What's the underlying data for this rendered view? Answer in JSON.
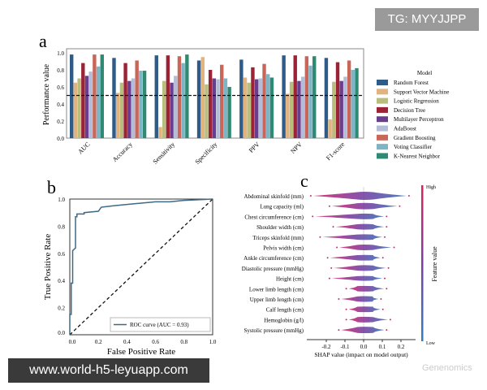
{
  "watermark_top": "TG: MYYJJPP",
  "watermark_bottom": "www.world-h5-leyuapp.com",
  "watermark_faint": "Genenomics",
  "chart_data": [
    {
      "panel": "a",
      "type": "bar",
      "ylabel": "Performance value",
      "ylim": [
        0,
        1.0
      ],
      "yticks": [
        "0.0",
        "0.2",
        "0.4",
        "0.6",
        "0.8",
        "1.0"
      ],
      "reference_line": 0.5,
      "legend_title": "Model",
      "legend_position": "right",
      "categories": [
        "AUC",
        "Accuracy",
        "Sensitivity",
        "Specificity",
        "PPV",
        "NPV",
        "F1-score"
      ],
      "series": [
        {
          "name": "Random Forest",
          "color": "#2e5b87",
          "values": [
            0.98,
            0.94,
            0.97,
            0.91,
            0.92,
            0.97,
            0.94
          ]
        },
        {
          "name": "Support Vector Machine",
          "color": "#e2b27f",
          "values": [
            0.65,
            0.53,
            0.13,
            0.95,
            0.71,
            0.52,
            0.22
          ]
        },
        {
          "name": "Logistic Regression",
          "color": "#b9be7c",
          "values": [
            0.7,
            0.65,
            0.67,
            0.63,
            0.65,
            0.66,
            0.66
          ]
        },
        {
          "name": "Decision Tree",
          "color": "#9b2335",
          "values": [
            0.88,
            0.88,
            0.97,
            0.8,
            0.83,
            0.97,
            0.89
          ]
        },
        {
          "name": "Multilayer Perceptron",
          "color": "#6a3d8f",
          "values": [
            0.73,
            0.67,
            0.65,
            0.7,
            0.69,
            0.67,
            0.67
          ]
        },
        {
          "name": "AdaBoost",
          "color": "#b4bdd8",
          "values": [
            0.78,
            0.7,
            0.73,
            0.69,
            0.7,
            0.72,
            0.72
          ]
        },
        {
          "name": "Gradient Boosting",
          "color": "#c8665a",
          "values": [
            0.98,
            0.91,
            0.96,
            0.86,
            0.87,
            0.96,
            0.91
          ]
        },
        {
          "name": "Voting Classifier",
          "color": "#7db5c6",
          "values": [
            0.84,
            0.79,
            0.88,
            0.7,
            0.75,
            0.85,
            0.8
          ]
        },
        {
          "name": "K-Nearest Neighbor",
          "color": "#2f8a73",
          "values": [
            0.98,
            0.79,
            0.98,
            0.6,
            0.71,
            0.96,
            0.82
          ]
        }
      ]
    },
    {
      "panel": "b",
      "type": "line",
      "xlabel": "False Positive Rate",
      "ylabel": "True Positive Rate",
      "xlim": [
        0,
        1
      ],
      "ylim": [
        0,
        1
      ],
      "ticks": [
        "0.0",
        "0.2",
        "0.4",
        "0.6",
        "0.8",
        "1.0"
      ],
      "legend": "ROC curve (AUC = 0.93)",
      "legend_position": "lower-right",
      "color": "#3d6a86",
      "x": [
        0,
        0,
        0.01,
        0.01,
        0.02,
        0.02,
        0.04,
        0.04,
        0.05,
        0.05,
        0.1,
        0.1,
        0.2,
        0.22,
        0.3,
        0.4,
        0.5,
        0.6,
        0.7,
        0.8,
        1.0
      ],
      "y": [
        0,
        0.15,
        0.15,
        0.38,
        0.38,
        0.62,
        0.64,
        0.87,
        0.87,
        0.89,
        0.89,
        0.9,
        0.91,
        0.94,
        0.95,
        0.96,
        0.97,
        0.98,
        0.98,
        0.99,
        1.0
      ]
    },
    {
      "panel": "c",
      "type": "scatter",
      "xlabel": "SHAP value (impact on model output)",
      "xticks": [
        "-0.2",
        "-0.1",
        "0.0",
        "0.1",
        "0.2"
      ],
      "xlim": [
        -0.3,
        0.3
      ],
      "colorbar_label": "Feature value",
      "colorbar_high": "High",
      "colorbar_low": "Low",
      "features": [
        {
          "name": "Abdominal skinfold (mm)",
          "min": -0.27,
          "max": 0.23,
          "width": 1.0
        },
        {
          "name": "Lung capacity (ml)",
          "min": -0.17,
          "max": 0.18,
          "width": 0.8
        },
        {
          "name": "Chest circumference (cm)",
          "min": -0.26,
          "max": 0.11,
          "width": 0.7
        },
        {
          "name": "Shoulder width (cm)",
          "min": -0.15,
          "max": 0.11,
          "width": 0.7
        },
        {
          "name": "Triceps skinfold (mm)",
          "min": -0.22,
          "max": 0.1,
          "width": 0.7
        },
        {
          "name": "Pelvis width (cm)",
          "min": -0.13,
          "max": 0.15,
          "width": 0.7
        },
        {
          "name": "Ankle circumference (cm)",
          "min": -0.18,
          "max": 0.09,
          "width": 0.7
        },
        {
          "name": "Diastolic pressure (mmHg)",
          "min": -0.16,
          "max": 0.12,
          "width": 0.7
        },
        {
          "name": "Height (cm)",
          "min": -0.17,
          "max": 0.1,
          "width": 0.6
        },
        {
          "name": "Lower limb length (cm)",
          "min": -0.08,
          "max": 0.11,
          "width": 0.7
        },
        {
          "name": "Upper limb length (cm)",
          "min": -0.12,
          "max": 0.08,
          "width": 0.7
        },
        {
          "name": "Calf length (cm)",
          "min": -0.08,
          "max": 0.09,
          "width": 0.7
        },
        {
          "name": "Hemoglobin (g/l)",
          "min": -0.08,
          "max": 0.13,
          "width": 0.7
        },
        {
          "name": "Systolic pressure (mmHg)",
          "min": -0.12,
          "max": 0.11,
          "width": 0.8
        }
      ]
    }
  ],
  "panel_labels": [
    "a",
    "b",
    "c"
  ]
}
